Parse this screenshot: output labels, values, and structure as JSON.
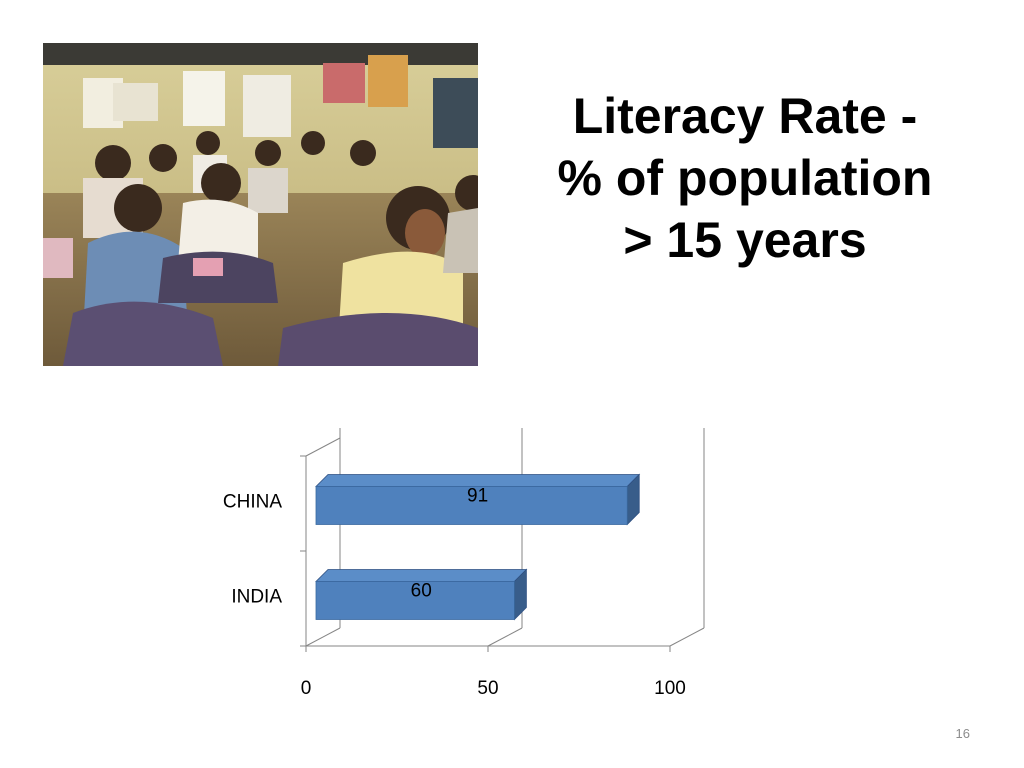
{
  "slide": {
    "title_lines": [
      "Literacy Rate -",
      "% of population",
      "> 15 years"
    ],
    "number": "16"
  },
  "photo": {
    "icon": "classroom-photo"
  },
  "colors": {
    "bar_front": "#4f81bd",
    "bar_top": "#5b8dc8",
    "bar_side": "#385d8a",
    "axis": "#868686"
  },
  "chart_data": {
    "type": "bar",
    "orientation": "horizontal",
    "style": "3d",
    "categories": [
      "CHINA",
      "INDIA"
    ],
    "values": [
      91,
      60
    ],
    "data_labels": [
      "91",
      "60"
    ],
    "xlim": [
      0,
      100
    ],
    "x_ticks": [
      0,
      50,
      100
    ],
    "x_tick_labels": [
      "0",
      "50",
      "100"
    ],
    "title": "",
    "xlabel": "",
    "ylabel": "",
    "grid": true,
    "legend": "none"
  }
}
